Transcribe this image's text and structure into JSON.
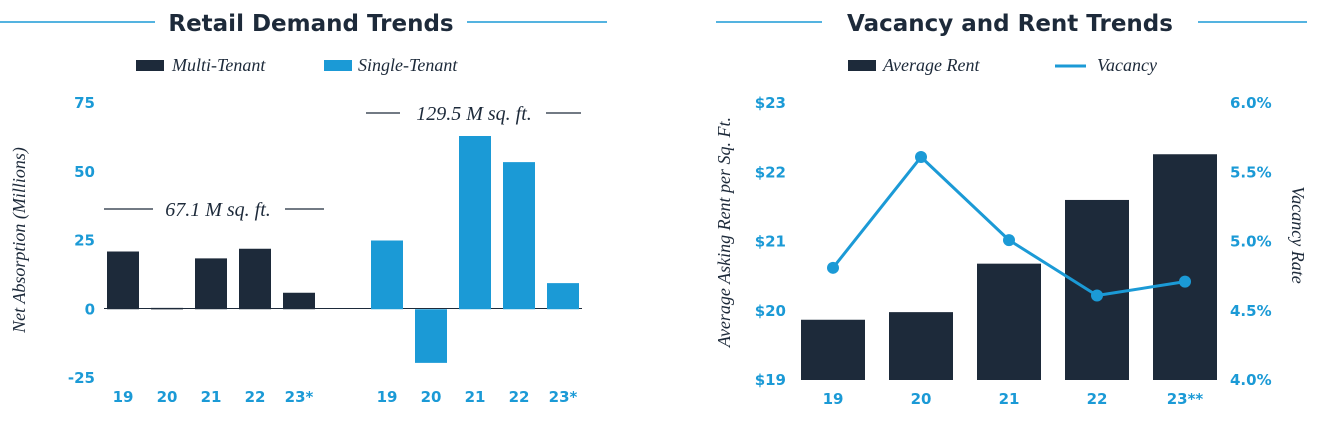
{
  "colors": {
    "navy": "#1d2a3a",
    "blue": "#1b9ad6"
  },
  "chart_data": [
    {
      "type": "bar",
      "title": "Retail Demand Trends",
      "ylabel": "Net Absorption (Millions)",
      "ylim": [
        -25,
        75
      ],
      "yticks": [
        "75",
        "50",
        "25",
        "0",
        "-25"
      ],
      "ytick_values": [
        75,
        50,
        25,
        0,
        -25
      ],
      "legend": [
        "Multi-Tenant",
        "Single-Tenant"
      ],
      "legend_position": "top-center",
      "groups": [
        {
          "name": "Multi-Tenant",
          "categories": [
            "19",
            "20",
            "21",
            "22",
            "23*"
          ],
          "values": [
            21,
            0.5,
            18.5,
            22,
            6
          ]
        },
        {
          "name": "Single-Tenant",
          "categories": [
            "19",
            "20",
            "21",
            "22",
            "23*"
          ],
          "values": [
            25,
            -19.5,
            63,
            53.5,
            9.5
          ]
        }
      ],
      "annotations": [
        "67.1 M sq. ft.",
        "129.5 M sq. ft."
      ]
    },
    {
      "type": "bar+line",
      "title": "Vacancy and Rent Trends",
      "categories": [
        "19",
        "20",
        "21",
        "22",
        "23**"
      ],
      "ylabel_left": "Average Asking Rent per Sq. Ft.",
      "ylabel_right": "Vacancy Rate",
      "ylim_left": [
        19,
        23
      ],
      "ylim_right": [
        4.0,
        6.0
      ],
      "yticks_left": [
        "$23",
        "$22",
        "$21",
        "$20",
        "$19"
      ],
      "ytick_values_left": [
        23,
        22,
        21,
        20,
        19
      ],
      "yticks_right": [
        "6.0%",
        "5.5%",
        "5.0%",
        "4.5%",
        "4.0%"
      ],
      "ytick_values_right": [
        6.0,
        5.5,
        5.0,
        4.5,
        4.0
      ],
      "legend": [
        "Average Rent",
        "Vacancy"
      ],
      "legend_position": "top-center",
      "series": [
        {
          "name": "Average Rent",
          "values": [
            19.87,
            19.98,
            20.68,
            21.6,
            22.26
          ]
        },
        {
          "name": "Vacancy",
          "values": [
            4.81,
            5.61,
            5.01,
            4.61,
            4.71
          ]
        }
      ]
    }
  ]
}
